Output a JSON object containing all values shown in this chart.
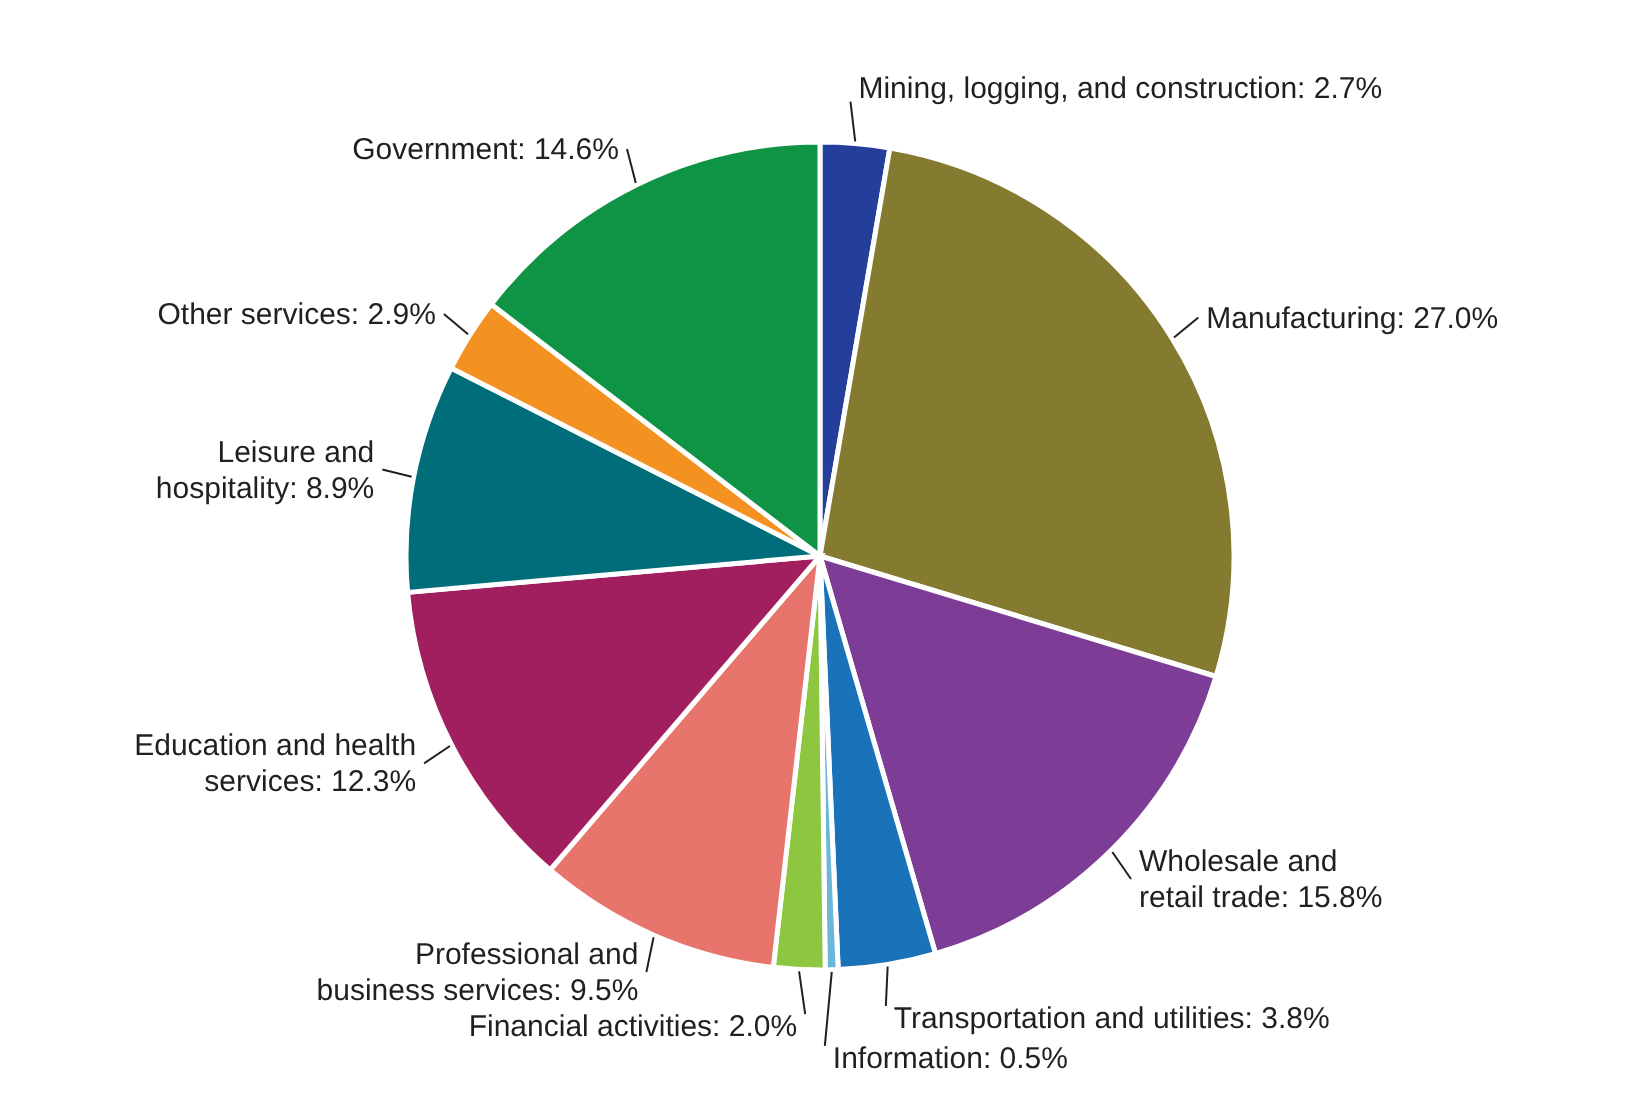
{
  "chart_data": {
    "type": "pie",
    "categories": [
      "Mining, logging, and construction",
      "Manufacturing",
      "Wholesale and retail trade",
      "Transportation and utilities",
      "Information",
      "Financial activities",
      "Professional and business services",
      "Education and health services",
      "Leisure and hospitality",
      "Other services",
      "Government"
    ],
    "values": [
      2.7,
      27.0,
      15.8,
      3.8,
      0.5,
      2.0,
      9.5,
      12.3,
      8.9,
      2.9,
      14.6
    ],
    "value_labels": [
      "2.7%",
      "27.0%",
      "15.8%",
      "3.8%",
      "0.5%",
      "2.0%",
      "9.5%",
      "12.3%",
      "8.9%",
      "2.9%",
      "14.6%"
    ],
    "colors": [
      "#243f99",
      "#847a30",
      "#7d3d97",
      "#1a72b8",
      "#6cb6d9",
      "#8dc63f",
      "#e8756b",
      "#a11f5e",
      "#006e7a",
      "#f39221",
      "#0f9445"
    ]
  }
}
